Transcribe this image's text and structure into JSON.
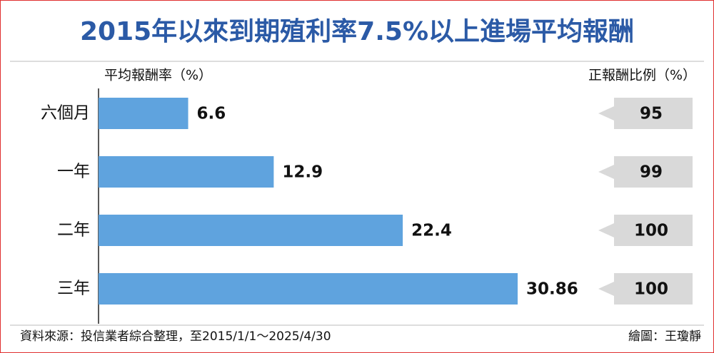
{
  "chart_data": {
    "type": "bar",
    "title": "2015年以來到期殖利率7.5%以上進場平均報酬",
    "categories": [
      "六個月",
      "一年",
      "二年",
      "三年"
    ],
    "series": [
      {
        "name": "平均報酬率（%）",
        "color": "#5fa3de",
        "values": [
          6.6,
          12.9,
          22.4,
          30.86
        ]
      },
      {
        "name": "正報酬比例（%）",
        "color": "#d9d9d9",
        "values": [
          95,
          99,
          100,
          100
        ]
      }
    ],
    "source": "資料來源：投信業者綜合整理，至2015/1/1～2025/4/30",
    "credit": "繪圖：王瓊靜"
  }
}
